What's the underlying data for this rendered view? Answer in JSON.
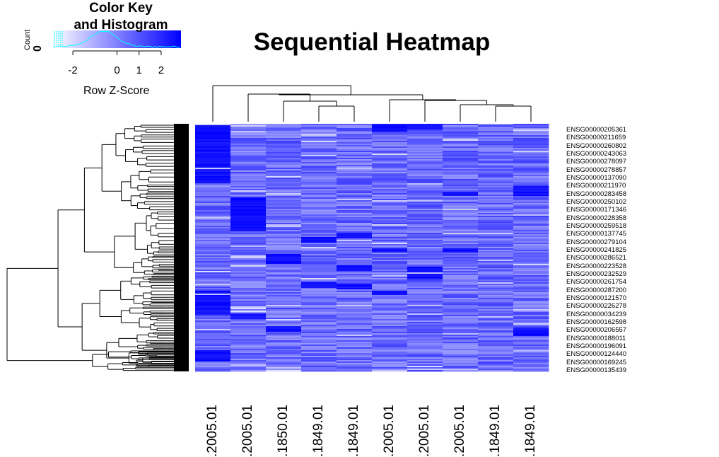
{
  "chart_data": {
    "type": "heatmap",
    "title": "Sequential Heatmap",
    "color_key": {
      "title_line1": "Color Key",
      "title_line2": "and Histogram",
      "ylabel": "Count",
      "ylabel_tick": "0",
      "xlabel": "Row Z-Score",
      "ticks": [
        "-2",
        "0",
        "1",
        "2"
      ],
      "tick_values": [
        -2,
        0,
        1,
        2
      ],
      "range": [
        -2.9,
        2.9
      ],
      "low_color": "#ffffff",
      "high_color": "#0000ff",
      "histogram_color": "#00ffff"
    },
    "columns": [
      ".2005.01",
      ".2005.01",
      ".1850.01",
      ".1849.01",
      ".1849.01",
      ".2005.01",
      ".2005.01",
      ".2005.01",
      ".1849.01",
      ".1849.01"
    ],
    "row_labels": [
      "ENSG00000205361",
      "ENSG00000211659",
      "ENSG00000260802",
      "ENSG00000243063",
      "ENSG00000278097",
      "ENSG00000278857",
      "ENSG00000137090",
      "ENSG00000211970",
      "ENSG00000283458",
      "ENSG00000250102",
      "ENSG00000171346",
      "ENSG00000228358",
      "ENSG00000259518",
      "ENSG00000137745",
      "ENSG00000279104",
      "ENSG00000241825",
      "ENSG00000286521",
      "ENSG00000223528",
      "ENSG00000232529",
      "ENSG00000261754",
      "ENSG00000287200",
      "ENSG00000121570",
      "ENSG00000226278",
      "ENSG00000034239",
      "ENSG00000162598",
      "ENSG00000206557",
      "ENSG00000188011",
      "ENSG00000196091",
      "ENSG00000124440",
      "ENSG00000169245",
      "ENSG00000135439"
    ],
    "colors": {
      "low": "#ffffff",
      "high": "#0000ff"
    }
  }
}
